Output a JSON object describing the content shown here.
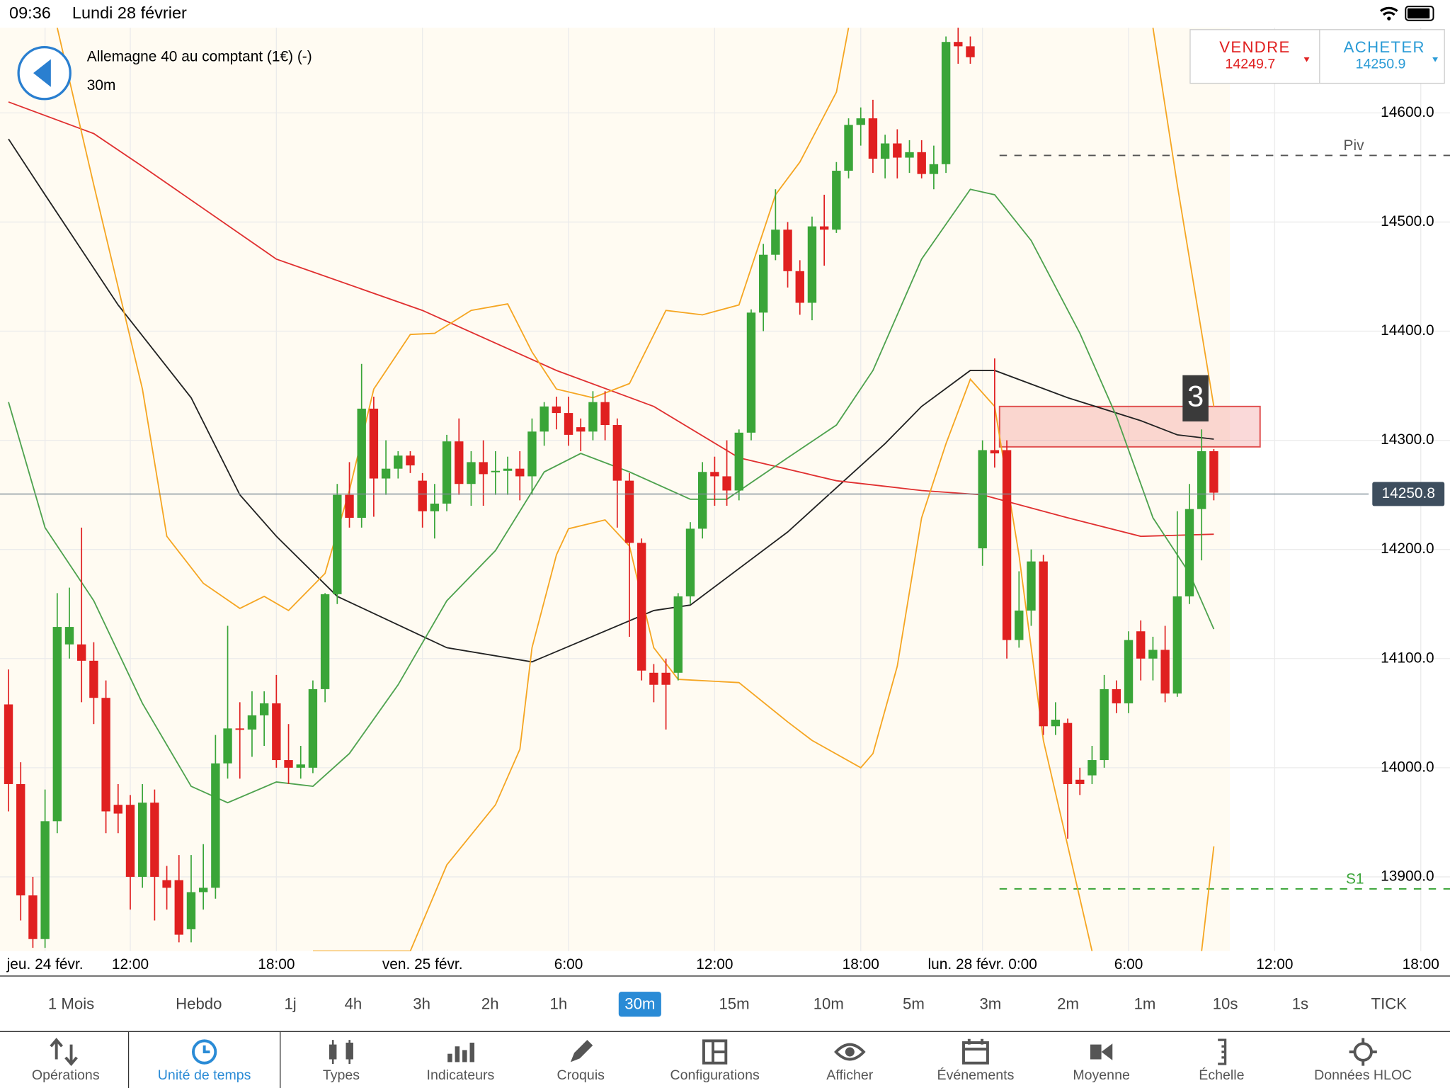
{
  "status_bar": {
    "time": "09:36",
    "date": "Lundi 28 février"
  },
  "header": {
    "instrument": "Allemagne 40 au comptant (1€) (-)",
    "timeframe": "30m"
  },
  "quote": {
    "sell_label": "VENDRE",
    "sell": 14249.7,
    "buy_label": "ACHETER",
    "buy": 14250.9
  },
  "timeframes": [
    "1 Mois",
    "Hebdo",
    "1j",
    "4h",
    "3h",
    "2h",
    "1h",
    "30m",
    "15m",
    "10m",
    "5m",
    "3m",
    "2m",
    "1m",
    "10s",
    "1s",
    "TICK"
  ],
  "selected_timeframe": "30m",
  "tabs": [
    "Opérations",
    "Unité de temps",
    "Types",
    "Indicateurs",
    "Croquis",
    "Configurations",
    "Afficher",
    "Événements",
    "Moyenne",
    "Échelle",
    "Données HLOC"
  ],
  "selected_tab": "Unité de temps",
  "chart_data": {
    "type": "candlestick",
    "up_color": "#3aa538",
    "down_color": "#e02020",
    "candles": [
      [
        14058,
        14090,
        13960,
        13985
      ],
      [
        13985,
        14005,
        13860,
        13883
      ],
      [
        13883,
        13900,
        13835,
        13843
      ],
      [
        13843,
        13980,
        13835,
        13951
      ],
      [
        13951,
        14160,
        13940,
        14129
      ],
      [
        14113,
        14165,
        14100,
        14129
      ],
      [
        14113,
        14220,
        14060,
        14098
      ],
      [
        14098,
        14115,
        14040,
        14064
      ],
      [
        14064,
        14080,
        13940,
        13960
      ],
      [
        13966,
        13985,
        13940,
        13958
      ],
      [
        13966,
        13975,
        13870,
        13900
      ],
      [
        13900,
        13985,
        13890,
        13968
      ],
      [
        13968,
        13980,
        13860,
        13900
      ],
      [
        13897,
        13910,
        13870,
        13890
      ],
      [
        13897,
        13920,
        13840,
        13847
      ],
      [
        13852,
        13920,
        13840,
        13886
      ],
      [
        13886,
        13930,
        13870,
        13890
      ],
      [
        13890,
        14030,
        13880,
        14004
      ],
      [
        14004,
        14130,
        13990,
        14036
      ],
      [
        14036,
        14060,
        13990,
        14035
      ],
      [
        14035,
        14070,
        14010,
        14048
      ],
      [
        14048,
        14070,
        14020,
        14059
      ],
      [
        14059,
        14085,
        14000,
        14007
      ],
      [
        14007,
        14040,
        13985,
        14000
      ],
      [
        14000,
        14020,
        13990,
        14003
      ],
      [
        14000,
        14080,
        13995,
        14072
      ],
      [
        14072,
        14160,
        14060,
        14159
      ],
      [
        14159,
        14260,
        14150,
        14250
      ],
      [
        14250,
        14280,
        14220,
        14229
      ],
      [
        14229,
        14370,
        14220,
        14329
      ],
      [
        14329,
        14340,
        14230,
        14265
      ],
      [
        14265,
        14300,
        14250,
        14274
      ],
      [
        14274,
        14290,
        14265,
        14286
      ],
      [
        14286,
        14290,
        14270,
        14277
      ],
      [
        14263,
        14270,
        14220,
        14235
      ],
      [
        14235,
        14260,
        14210,
        14242
      ],
      [
        14242,
        14305,
        14235,
        14299
      ],
      [
        14299,
        14320,
        14250,
        14260
      ],
      [
        14260,
        14290,
        14240,
        14280
      ],
      [
        14280,
        14300,
        14240,
        14269
      ],
      [
        14271,
        14290,
        14250,
        14272
      ],
      [
        14272,
        14285,
        14250,
        14274
      ],
      [
        14274,
        14290,
        14245,
        14267
      ],
      [
        14267,
        14320,
        14250,
        14308
      ],
      [
        14308,
        14335,
        14295,
        14331
      ],
      [
        14331,
        14340,
        14310,
        14325
      ],
      [
        14325,
        14340,
        14295,
        14305
      ],
      [
        14312,
        14320,
        14290,
        14308
      ],
      [
        14308,
        14345,
        14300,
        14335
      ],
      [
        14335,
        14345,
        14300,
        14314
      ],
      [
        14314,
        14320,
        14220,
        14263
      ],
      [
        14263,
        14270,
        14120,
        14206
      ],
      [
        14206,
        14210,
        14080,
        14089
      ],
      [
        14087,
        14095,
        14060,
        14076
      ],
      [
        14087,
        14100,
        14035,
        14076
      ],
      [
        14087,
        14160,
        14080,
        14157
      ],
      [
        14157,
        14225,
        14150,
        14219
      ],
      [
        14219,
        14280,
        14210,
        14271
      ],
      [
        14271,
        14285,
        14240,
        14267
      ],
      [
        14267,
        14300,
        14240,
        14254
      ],
      [
        14254,
        14310,
        14245,
        14307
      ],
      [
        14307,
        14420,
        14300,
        14417
      ],
      [
        14417,
        14480,
        14400,
        14470
      ],
      [
        14470,
        14530,
        14465,
        14493
      ],
      [
        14493,
        14500,
        14440,
        14455
      ],
      [
        14455,
        14465,
        14415,
        14426
      ],
      [
        14426,
        14505,
        14410,
        14496
      ],
      [
        14496,
        14525,
        14460,
        14493
      ],
      [
        14493,
        14555,
        14490,
        14547
      ],
      [
        14547,
        14595,
        14540,
        14589
      ],
      [
        14589,
        14605,
        14570,
        14595
      ],
      [
        14595,
        14612,
        14545,
        14558
      ],
      [
        14558,
        14580,
        14540,
        14572
      ],
      [
        14572,
        14585,
        14540,
        14559
      ],
      [
        14559,
        14575,
        14545,
        14564
      ],
      [
        14564,
        14575,
        14540,
        14544
      ],
      [
        14544,
        14570,
        14530,
        14553
      ],
      [
        14553,
        14670,
        14545,
        14665
      ],
      [
        14665,
        14680,
        14645,
        14661
      ],
      [
        14661,
        14670,
        14645,
        14651
      ],
      [
        14201,
        14300,
        14185,
        14291
      ],
      [
        14291,
        14375,
        14275,
        14288
      ],
      [
        14291,
        14300,
        14100,
        14117
      ],
      [
        14117,
        14180,
        14110,
        14144
      ],
      [
        14144,
        14200,
        14130,
        14189
      ],
      [
        14189,
        14195,
        14030,
        14038
      ],
      [
        14038,
        14060,
        14030,
        14044
      ],
      [
        14041,
        14045,
        13935,
        13985
      ],
      [
        13989,
        14000,
        13975,
        13985
      ],
      [
        13993,
        14020,
        13985,
        14007
      ],
      [
        14007,
        14085,
        14000,
        14072
      ],
      [
        14072,
        14080,
        14050,
        14059
      ],
      [
        14059,
        14125,
        14050,
        14117
      ],
      [
        14125,
        14135,
        14080,
        14100
      ],
      [
        14100,
        14120,
        14080,
        14108
      ],
      [
        14108,
        14130,
        14060,
        14068
      ],
      [
        14068,
        14235,
        14065,
        14157
      ],
      [
        14157,
        14260,
        14150,
        14237
      ],
      [
        14237,
        14310,
        14190,
        14290
      ],
      [
        14290,
        14292,
        14245,
        14252
      ]
    ],
    "series": [
      {
        "color": "#222222",
        "x": [
          0,
          3,
          9,
          15,
          19,
          22,
          27,
          36,
          43,
          53,
          56,
          64,
          72,
          75,
          79,
          81,
          87,
          93,
          96,
          99
        ],
        "values": [
          14576,
          14525,
          14424,
          14339,
          14250,
          14212,
          14157,
          14110,
          14097,
          14144,
          14149,
          14216,
          14297,
          14331,
          14364,
          14364,
          14339,
          14318,
          14305,
          14301
        ]
      },
      {
        "color": "#e03030",
        "x": [
          0,
          7,
          11,
          22,
          34,
          45,
          53,
          60,
          68,
          75,
          80,
          87,
          93,
          99
        ],
        "values": [
          14610,
          14581,
          14551,
          14466,
          14419,
          14364,
          14331,
          14284,
          14263,
          14254,
          14250,
          14229,
          14212,
          14214
        ]
      },
      {
        "color": "#4ea24e",
        "x": [
          0,
          3,
          7,
          11,
          15,
          18,
          22,
          25,
          28,
          32,
          36,
          40,
          44,
          47,
          51,
          56,
          59,
          64,
          68,
          71,
          75,
          79,
          81,
          84,
          88,
          91,
          94,
          97,
          99
        ],
        "values": [
          14335,
          14220,
          14153,
          14059,
          13983,
          13968,
          13987,
          13983,
          14013,
          14076,
          14153,
          14199,
          14271,
          14288,
          14271,
          14246,
          14246,
          14284,
          14314,
          14364,
          14466,
          14530,
          14525,
          14483,
          14398,
          14322,
          14229,
          14178,
          14127
        ]
      },
      {
        "color": "#f5a623",
        "x": [
          4,
          7,
          11,
          13,
          16,
          19,
          21,
          23,
          26,
          28,
          30,
          33,
          35,
          38,
          41,
          43,
          45,
          48,
          51,
          54,
          57,
          60,
          63,
          65,
          68,
          69,
          80,
          94,
          96,
          99
        ],
        "values": [
          14678,
          14534,
          14347,
          14212,
          14169,
          14146,
          14157,
          14144,
          14178,
          14254,
          14347,
          14397,
          14398,
          14419,
          14425,
          14381,
          14347,
          14339,
          14352,
          14419,
          14415,
          14424,
          14525,
          14555,
          14619,
          14678,
          null,
          14678,
          14534,
          14331
        ]
      },
      {
        "color": "#f5a623",
        "x": [
          25,
          33,
          36,
          40,
          42,
          43,
          45,
          46,
          49,
          51,
          53,
          55,
          60,
          64,
          66,
          70,
          71,
          73,
          75,
          77,
          79,
          81,
          83,
          85,
          89,
          94,
          98,
          99
        ],
        "values": [
          13832,
          13832,
          13911,
          13966,
          14017,
          14110,
          14195,
          14219,
          14227,
          14203,
          14110,
          14081,
          14078,
          14042,
          14025,
          14000,
          14013,
          14093,
          14229,
          14297,
          14356,
          14331,
          14195,
          14025,
          13832,
          null,
          13832,
          13928
        ]
      }
    ],
    "xlim": [
      -0.7,
      118.4
    ],
    "ylim": [
      13832,
      14678
    ],
    "yticks": [
      {
        "value": 13900,
        "label": "13900.0"
      },
      {
        "value": 14000,
        "label": "14000.0"
      },
      {
        "value": 14100,
        "label": "14100.0"
      },
      {
        "value": 14200,
        "label": "14200.0"
      },
      {
        "value": 14300,
        "label": "14300.0"
      },
      {
        "value": 14400,
        "label": "14400.0"
      },
      {
        "value": 14500,
        "label": "14500.0"
      },
      {
        "value": 14600,
        "label": "14600.0"
      }
    ],
    "xticks": [
      {
        "value": 3,
        "label": "jeu. 24 févr."
      },
      {
        "value": 10,
        "label": "12:00"
      },
      {
        "value": 22,
        "label": "18:00"
      },
      {
        "value": 34,
        "label": "ven. 25 févr."
      },
      {
        "value": 46,
        "label": "6:00"
      },
      {
        "value": 58,
        "label": "12:00"
      },
      {
        "value": 70,
        "label": "18:00"
      },
      {
        "value": 80,
        "label": "lun. 28 févr. 0:00"
      },
      {
        "value": 92,
        "label": "6:00"
      },
      {
        "value": 104,
        "label": "12:00"
      },
      {
        "value": 116,
        "label": "18:00"
      }
    ],
    "grid": true,
    "last": 14250.8,
    "levels": [
      {
        "label": "Piv",
        "value": 14561,
        "color": "#555555",
        "start": 81.4
      },
      {
        "label": "S1",
        "value": 13889,
        "color": "#3aa538",
        "start": 81.4
      }
    ],
    "zone": {
      "x": [
        81.4,
        102.8
      ],
      "y": [
        14294,
        14331
      ]
    },
    "annotations": [
      {
        "text": "3",
        "x": 97.5,
        "y": 14330
      }
    ]
  }
}
